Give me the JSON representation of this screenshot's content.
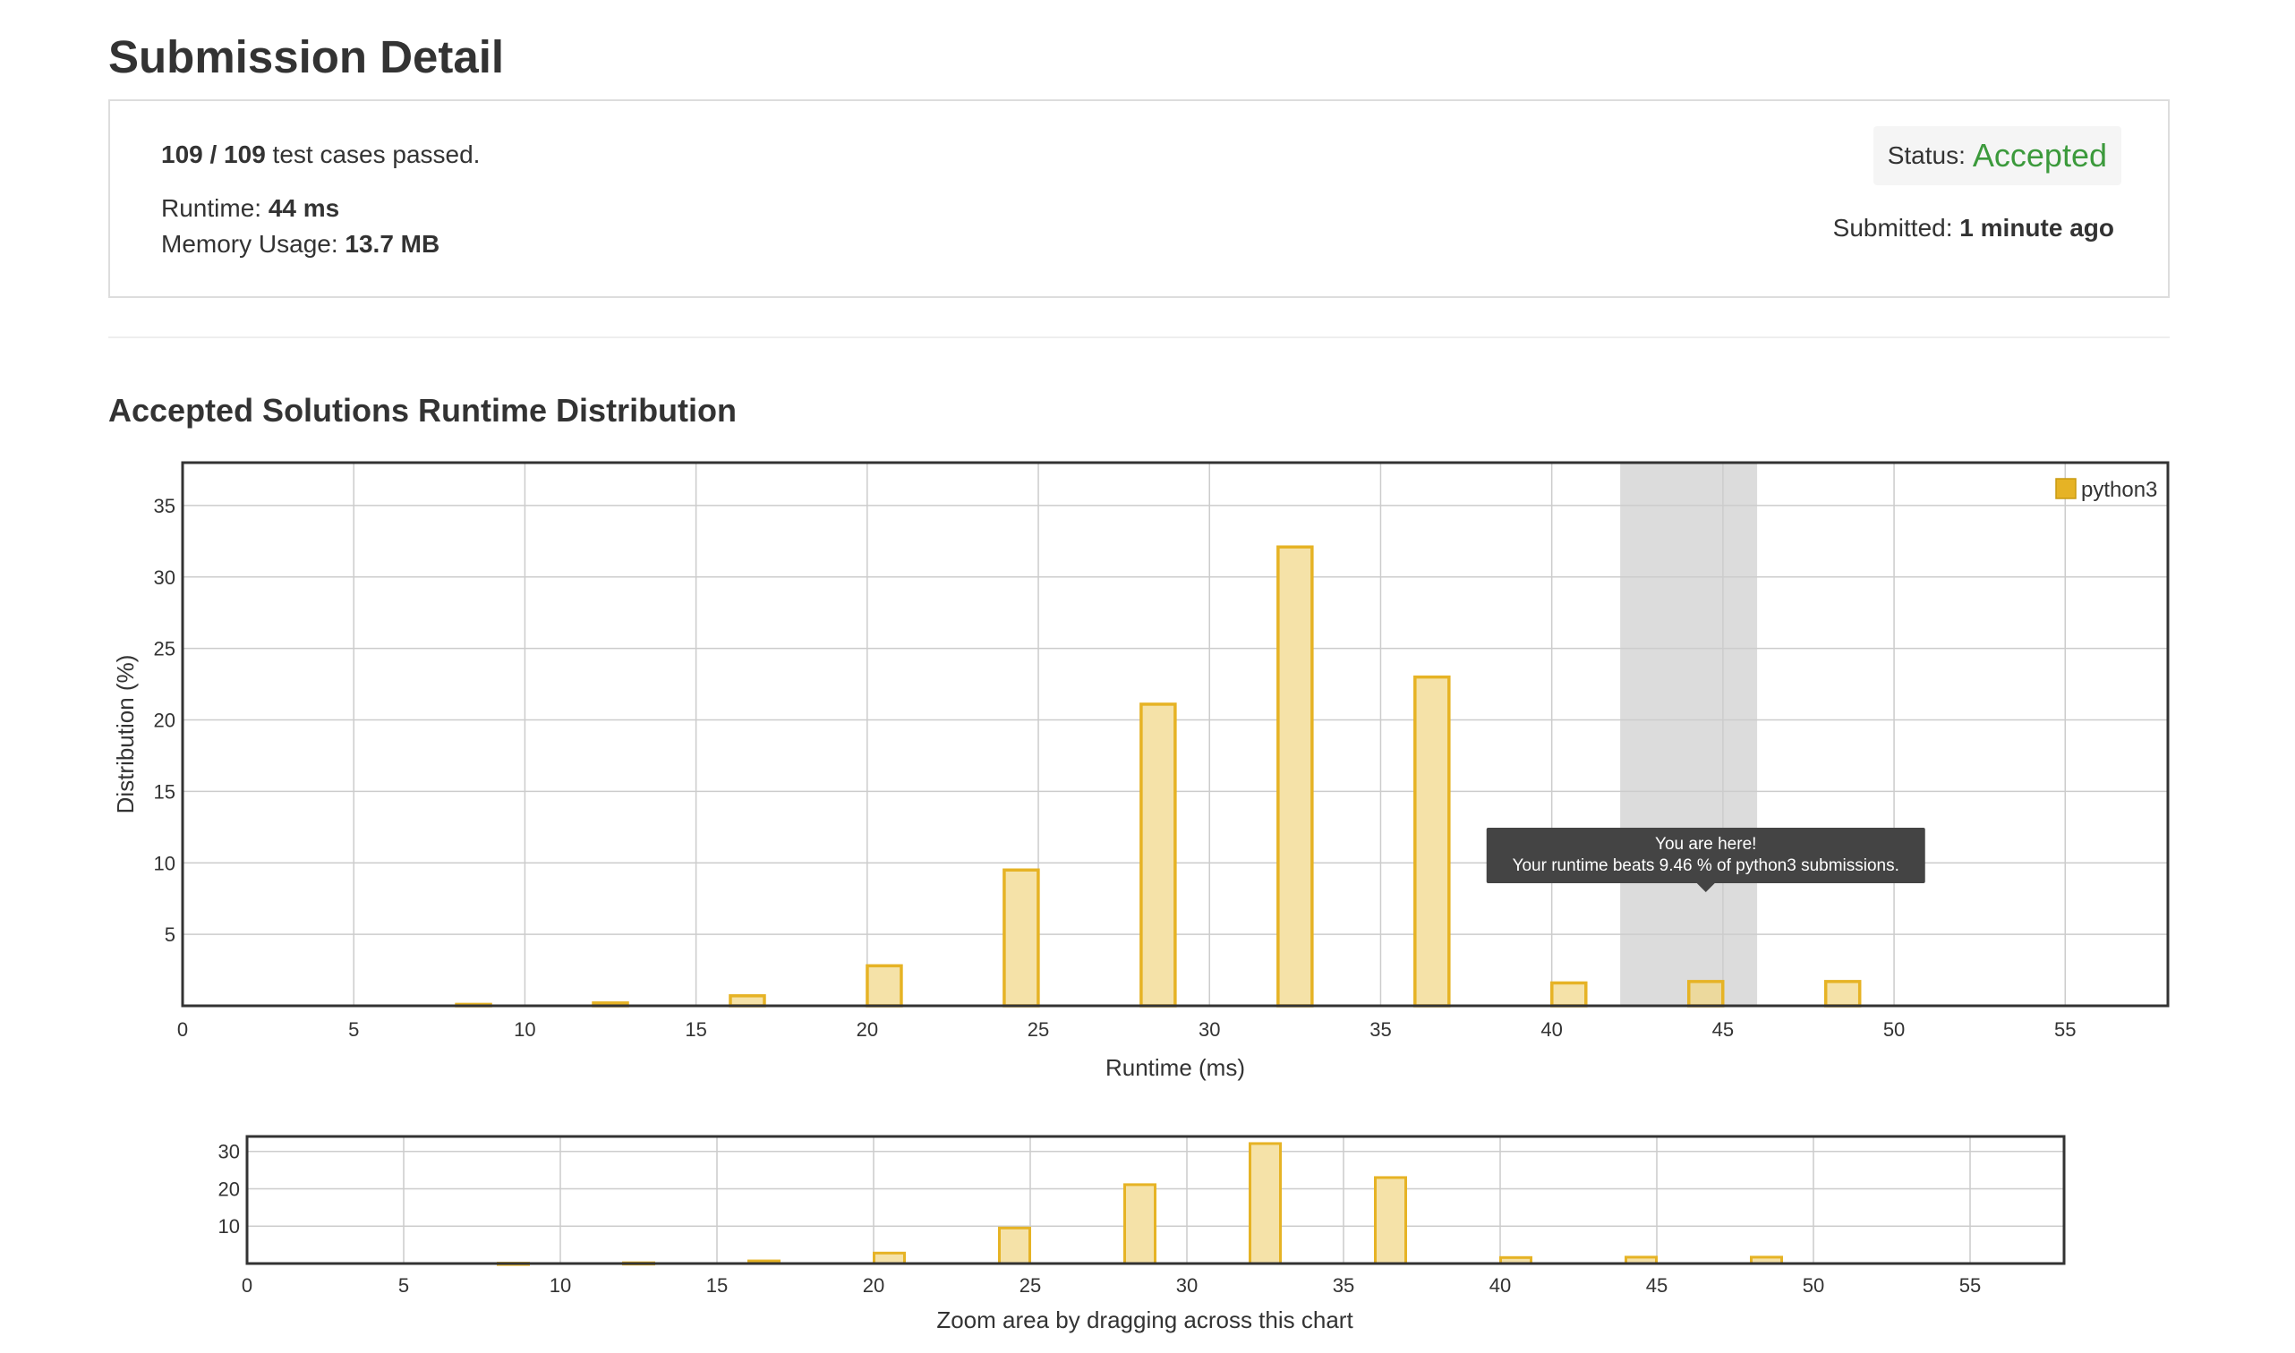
{
  "page": {
    "title": "Submission Detail",
    "section_title": "Accepted Solutions Runtime Distribution"
  },
  "result": {
    "passed": "109 / 109",
    "passed_suffix": " test cases passed.",
    "runtime_label": "Runtime: ",
    "runtime_value": "44 ms",
    "memory_label": "Memory Usage: ",
    "memory_value": "13.7 MB",
    "status_label": "Status:",
    "status_value": "Accepted",
    "submitted_label": "Submitted: ",
    "submitted_value": "1 minute ago"
  },
  "colors": {
    "bar_fill": "#f5e2a8",
    "bar_stroke": "#e6b325",
    "accent_green": "#3c9a3c",
    "highlight": "#dcdcdc",
    "tooltip_bg": "#444444"
  },
  "chart_data": [
    {
      "type": "bar",
      "xlabel": "Runtime (ms)",
      "ylabel": "Distribution (%)",
      "xlim": [
        0,
        58
      ],
      "ylim": [
        0,
        38
      ],
      "xticks": [
        0,
        5,
        10,
        15,
        20,
        25,
        30,
        35,
        40,
        45,
        50,
        55
      ],
      "yticks": [
        5,
        10,
        15,
        20,
        25,
        30,
        35
      ],
      "grid": true,
      "legend": "top-right",
      "series": [
        {
          "name": "python3",
          "x": [
            8.5,
            12.5,
            16.5,
            20.5,
            24.5,
            28.5,
            32.5,
            36.5,
            40.5,
            44.5,
            48.5
          ],
          "values": [
            0.1,
            0.2,
            0.7,
            2.8,
            9.5,
            21.1,
            32.1,
            23.0,
            1.6,
            1.7,
            1.7
          ]
        }
      ],
      "highlight": {
        "x_from": 42,
        "x_to": 46,
        "current_x": 44.5
      },
      "tooltip": {
        "line1": "You are here!",
        "line2": "Your runtime beats 9.46 % of python3 submissions."
      }
    },
    {
      "type": "bar",
      "role": "navigator",
      "xlabel": "Zoom area by dragging across this chart",
      "xlim": [
        0,
        58
      ],
      "ylim": [
        0,
        34
      ],
      "xticks": [
        0,
        5,
        10,
        15,
        20,
        25,
        30,
        35,
        40,
        45,
        50,
        55
      ],
      "yticks": [
        10,
        20,
        30
      ],
      "grid": true,
      "series": [
        {
          "name": "python3",
          "x": [
            8.5,
            12.5,
            16.5,
            20.5,
            24.5,
            28.5,
            32.5,
            36.5,
            40.5,
            44.5,
            48.5
          ],
          "values": [
            0.1,
            0.2,
            0.7,
            2.8,
            9.5,
            21.1,
            32.1,
            23.0,
            1.6,
            1.7,
            1.7
          ]
        }
      ]
    }
  ]
}
